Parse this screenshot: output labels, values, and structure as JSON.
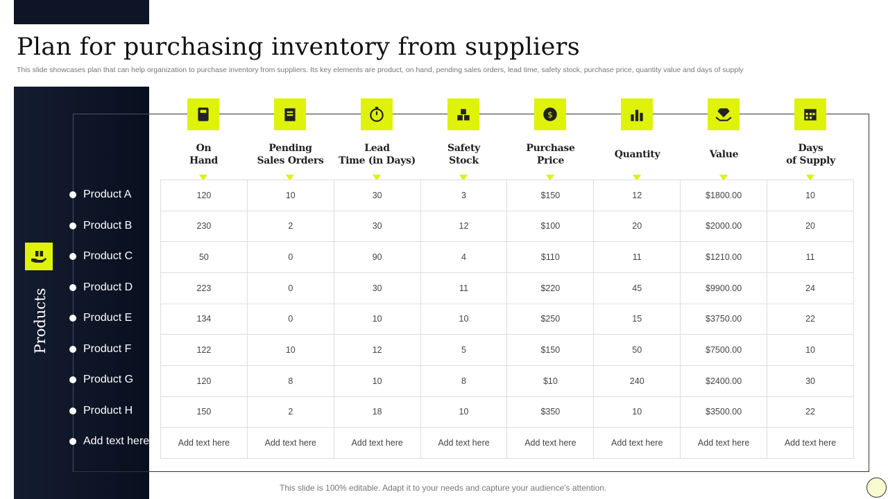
{
  "title": "Plan for purchasing inventory from suppliers",
  "subtitle": "This slide showcases plan that can help organization to purchase inventory from suppliers. Its key elements are product, on hand, pending sales orders, lead time, safety stock, purchase price, quantity value and days of supply",
  "sidebar_title": "Products",
  "products": [
    "Product A",
    "Product B",
    "Product C",
    "Product D",
    "Product E",
    "Product F",
    "Product G",
    "Product H",
    "Add text here"
  ],
  "columns": [
    {
      "label": "On\nHand",
      "icon": "inventory-icon"
    },
    {
      "label": "Pending\nSales Orders",
      "icon": "clipboard-icon"
    },
    {
      "label": "Lead\nTime (in Days)",
      "icon": "stopwatch-icon"
    },
    {
      "label": "Safety\nStock",
      "icon": "boxes-icon"
    },
    {
      "label": "Purchase\nPrice",
      "icon": "dollar-coin-icon"
    },
    {
      "label": "Quantity",
      "icon": "stack-icon"
    },
    {
      "label": "Value",
      "icon": "diamond-hand-icon"
    },
    {
      "label": "Days\nof Supply",
      "icon": "calendar-icon"
    }
  ],
  "rows": [
    [
      "120",
      "10",
      "30",
      "3",
      "$150",
      "12",
      "$1800.00",
      "10"
    ],
    [
      "230",
      "2",
      "30",
      "12",
      "$100",
      "20",
      "$2000.00",
      "20"
    ],
    [
      "50",
      "0",
      "90",
      "4",
      "$110",
      "11",
      "$1210.00",
      "11"
    ],
    [
      "223",
      "0",
      "30",
      "11",
      "$220",
      "45",
      "$9900.00",
      "24"
    ],
    [
      "134",
      "0",
      "10",
      "10",
      "$250",
      "15",
      "$3750.00",
      "22"
    ],
    [
      "122",
      "10",
      "12",
      "5",
      "$150",
      "50",
      "$7500.00",
      "10"
    ],
    [
      "120",
      "8",
      "10",
      "8",
      "$10",
      "240",
      "$2400.00",
      "30"
    ],
    [
      "150",
      "2",
      "18",
      "10",
      "$350",
      "10",
      "$3500.00",
      "22"
    ],
    [
      "Add text here",
      "Add text here",
      "Add text here",
      "Add text here",
      "Add text here",
      "Add text here",
      "Add text here",
      "Add text here"
    ]
  ],
  "footer": "This slide is 100% editable. Adapt it to your needs and capture your audience's attention.",
  "accent": "#dff20a"
}
